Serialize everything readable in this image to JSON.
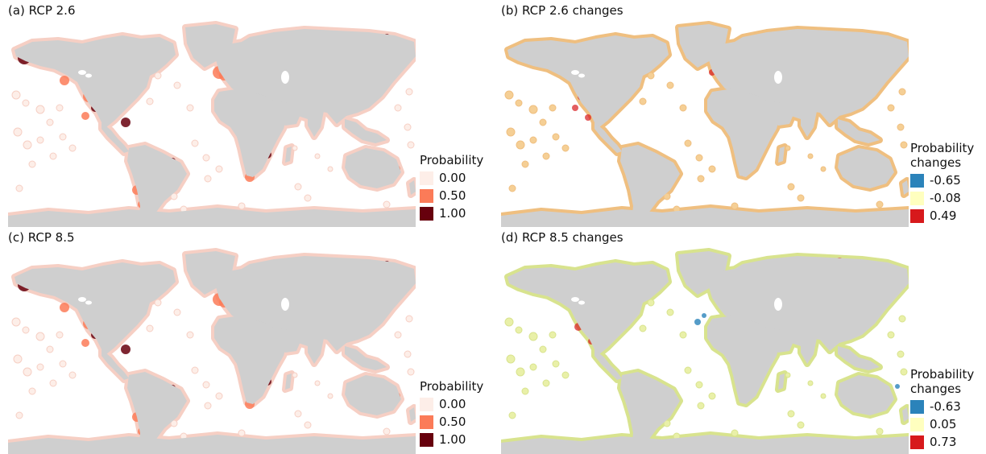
{
  "panels": [
    {
      "id": "a",
      "title": "(a) RCP 2.6",
      "scheme": "probability",
      "legend": {
        "title_lines": [
          "Probability"
        ],
        "items": [
          {
            "label": "0.00",
            "color": "#fdeee8"
          },
          {
            "label": "0.50",
            "color": "#fb7b58"
          },
          {
            "label": "1.00",
            "color": "#67000d"
          }
        ]
      }
    },
    {
      "id": "b",
      "title": "(b) RCP 2.6 changes",
      "scheme": "changes26",
      "legend": {
        "title_lines": [
          "Probability",
          "changes"
        ],
        "items": [
          {
            "label": "-0.65",
            "color": "#2b83ba"
          },
          {
            "label": "-0.08",
            "color": "#ffffbf"
          },
          {
            "label": "0.49",
            "color": "#d7191c"
          }
        ]
      }
    },
    {
      "id": "c",
      "title": "(c) RCP 8.5",
      "scheme": "probability",
      "legend": {
        "title_lines": [
          "Probability"
        ],
        "items": [
          {
            "label": "0.00",
            "color": "#fdeee8"
          },
          {
            "label": "0.50",
            "color": "#fb7b58"
          },
          {
            "label": "1.00",
            "color": "#67000d"
          }
        ]
      }
    },
    {
      "id": "d",
      "title": "(d) RCP 8.5 changes",
      "scheme": "changes85",
      "legend": {
        "title_lines": [
          "Probability",
          "changes"
        ],
        "items": [
          {
            "label": "-0.63",
            "color": "#2b83ba"
          },
          {
            "label": "0.05",
            "color": "#ffffbf"
          },
          {
            "label": "0.73",
            "color": "#d7191c"
          }
        ]
      }
    }
  ],
  "colors": {
    "land": "#cfcfcf",
    "background": "#ffffff"
  }
}
